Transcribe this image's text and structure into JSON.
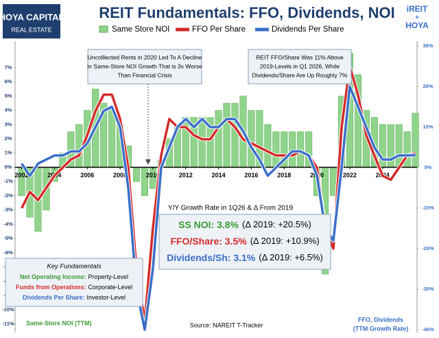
{
  "chart_data": {
    "type": "combo",
    "title": "REIT Fundamentals: FFO, Dividends, NOI",
    "logo_left": {
      "name": "HOYA CAPITAL",
      "sub": "REAL ESTATE"
    },
    "logo_right": {
      "top": "iREIT",
      "mid": "+",
      "bottom": "HOYA"
    },
    "x": [
      2002,
      2002.5,
      2003,
      2003.5,
      2004,
      2004.5,
      2005,
      2005.5,
      2006,
      2006.5,
      2007,
      2007.5,
      2008,
      2008.5,
      2009,
      2009.5,
      2010,
      2010.5,
      2011,
      2011.5,
      2012,
      2012.5,
      2013,
      2013.5,
      2014,
      2014.5,
      2015,
      2015.5,
      2016,
      2016.5,
      2017,
      2017.5,
      2018,
      2018.5,
      2019,
      2019.5,
      2020,
      2020.5,
      2021,
      2021.5,
      2022,
      2022.5,
      2023,
      2023.5,
      2024,
      2024.5,
      2025,
      2025.5,
      2026
    ],
    "xlim": [
      2001.6,
      2026.1
    ],
    "xticks": [
      2002,
      2004,
      2006,
      2008,
      2010,
      2012,
      2014,
      2016,
      2018,
      2020,
      2022,
      2024
    ],
    "ylim": [
      -11.6,
      8.85
    ],
    "yticks": [
      {
        "value": -11,
        "label": "-11%"
      },
      {
        "value": -10,
        "label": "-10%"
      },
      {
        "value": -9,
        "label": "-9%"
      },
      {
        "value": -8,
        "label": "-8%"
      },
      {
        "value": -7,
        "label": "-7%"
      },
      {
        "value": -6,
        "label": "-6%"
      },
      {
        "value": -5,
        "label": "-5%"
      },
      {
        "value": -4,
        "label": "-4%"
      },
      {
        "value": -3,
        "label": "-3%"
      },
      {
        "value": -2,
        "label": "-2%"
      },
      {
        "value": -1,
        "label": "-1%"
      },
      {
        "value": 0,
        "label": "0%"
      },
      {
        "value": 1,
        "label": "1%"
      },
      {
        "value": 2,
        "label": "2%"
      },
      {
        "value": 3,
        "label": "3%"
      },
      {
        "value": 4,
        "label": "4%"
      },
      {
        "value": 5,
        "label": "5%"
      },
      {
        "value": 6,
        "label": "6%"
      },
      {
        "value": 7,
        "label": "7%"
      }
    ],
    "y2lim": [
      -40.7,
      31.2
    ],
    "y2ticks": [
      {
        "value": -40,
        "label": "-40%"
      },
      {
        "value": -30,
        "label": "-30%"
      },
      {
        "value": -20,
        "label": "-20%"
      },
      {
        "value": -10,
        "label": "-10%"
      },
      {
        "value": 0,
        "label": "0%"
      },
      {
        "value": 10,
        "label": "10%"
      },
      {
        "value": 20,
        "label": "20%"
      },
      {
        "value": 30,
        "label": "30%"
      }
    ],
    "series": [
      {
        "name": "Same Store NOI",
        "kind": "bar",
        "color": "#8fd48a",
        "values": [
          -2,
          -3.5,
          -4.5,
          -3,
          -1,
          1,
          2.5,
          3,
          4,
          5.5,
          4.5,
          4,
          3,
          1.5,
          -1,
          -2,
          -1.5,
          0.5,
          2,
          3,
          3.5,
          3.5,
          3.5,
          3.5,
          4,
          4.5,
          4.5,
          5,
          4,
          4,
          3,
          2.5,
          2.5,
          2.5,
          2.5,
          2.5,
          -2,
          -7.5,
          -2,
          5,
          8,
          6.5,
          4,
          3.5,
          3,
          3,
          3,
          2.5,
          3.8
        ]
      },
      {
        "name": "FFO Per Share",
        "kind": "line",
        "axis": "y2",
        "color": "#d42a2a",
        "values": [
          -10,
          -6,
          -8,
          -5,
          -2,
          0,
          2,
          3,
          8,
          14,
          18,
          18,
          12,
          0,
          -25,
          -38,
          -15,
          3,
          12,
          10,
          10,
          8,
          7,
          7,
          10,
          12,
          10,
          7,
          6,
          5,
          4,
          3,
          3,
          3,
          4,
          3,
          0,
          -15,
          -20,
          10,
          25,
          18,
          8,
          3,
          -2,
          -3,
          0,
          3,
          3.5
        ]
      },
      {
        "name": "Dividends Per Share",
        "kind": "line",
        "axis": "y2",
        "color": "#3a6fc7",
        "values": [
          1,
          -2,
          1,
          2,
          3,
          3,
          4,
          4,
          6,
          10,
          14,
          15,
          10,
          -5,
          -30,
          -40,
          -25,
          0,
          5,
          10,
          12,
          10,
          12,
          10,
          10,
          12,
          12,
          9,
          5,
          2,
          -2,
          0,
          2,
          4,
          4,
          3,
          -2,
          -15,
          -18,
          0,
          20,
          15,
          10,
          5,
          2,
          2,
          3,
          3,
          3.1
        ]
      }
    ],
    "annotations": [
      {
        "lines": [
          "Uncolllected Rents in 2020 Led To A Decline",
          "in Same-Store NOI Growth That is 3x Worse",
          "Than Financial Crisis"
        ]
      },
      {
        "lines": [
          "REIT FFO/Share Was 11% Above",
          "2019-Levels in Q1 2026, While",
          "Dividends/Share Are Up Roughly 7%"
        ]
      }
    ],
    "summary": {
      "title": "Y/Y Growth Rate in 1Q26 & Δ From 2019",
      "rows": [
        {
          "head": "SS NOI: 3.8%",
          "delta": "(Δ 2019: +20.5%)",
          "color": "#3a9a35"
        },
        {
          "head": "FFO/Share: 3.5%",
          "delta": "(Δ 2019: +10.9%)",
          "color": "#d42a2a"
        },
        {
          "head": "Dividends/Sh: 3.1%",
          "delta": "(Δ 2019: +6.5%)",
          "color": "#3a6fc7"
        }
      ]
    },
    "key": {
      "title": "Key Fundamentals",
      "rows": [
        {
          "term": "Net Operating Income:",
          "level": "Property-Level",
          "color": "#3a9a35"
        },
        {
          "term": "Funds from Operations:",
          "level": "Corporate-Level",
          "color": "#d42a2a"
        },
        {
          "term": "Dividends Per Share:",
          "level": "Investor-Level",
          "color": "#3a6fc7"
        }
      ]
    },
    "y_axis_label": "Same-Store NOI (TTM)",
    "source": "Source: NAREIT T-Tracker",
    "y2_axis_label": [
      "FFO, Dividends",
      "(TTM Growth Rate)"
    ]
  }
}
